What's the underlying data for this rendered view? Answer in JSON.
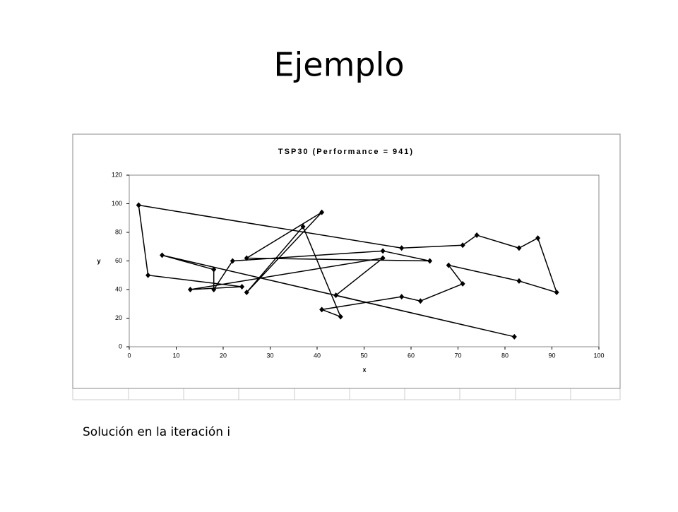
{
  "slide": {
    "title": "Ejemplo",
    "caption": "Solución en la iteración i"
  },
  "chart_data": {
    "type": "line",
    "title": "TSP30 (Performance = 941)",
    "x_label": "x",
    "y_label": "y",
    "x": [
      2,
      4,
      24,
      13,
      54,
      44,
      82,
      7,
      18,
      18,
      22,
      54,
      64,
      25,
      41,
      25,
      37,
      45,
      41,
      58,
      62,
      71,
      68,
      83,
      91,
      87,
      83,
      74,
      71,
      58,
      2
    ],
    "values": [
      99,
      50,
      42,
      40,
      62,
      36,
      7,
      64,
      54,
      40,
      60,
      67,
      60,
      62,
      94,
      38,
      84,
      21,
      26,
      35,
      32,
      44,
      57,
      46,
      38,
      76,
      69,
      78,
      71,
      69,
      99
    ],
    "color": "#000000",
    "xlim": [
      0,
      100
    ],
    "xticks": [
      0,
      10,
      20,
      30,
      40,
      50,
      60,
      70,
      80,
      90,
      100
    ],
    "ylim": [
      0,
      120
    ],
    "yticks": [
      0,
      20,
      40,
      60,
      80,
      100,
      120
    ]
  }
}
